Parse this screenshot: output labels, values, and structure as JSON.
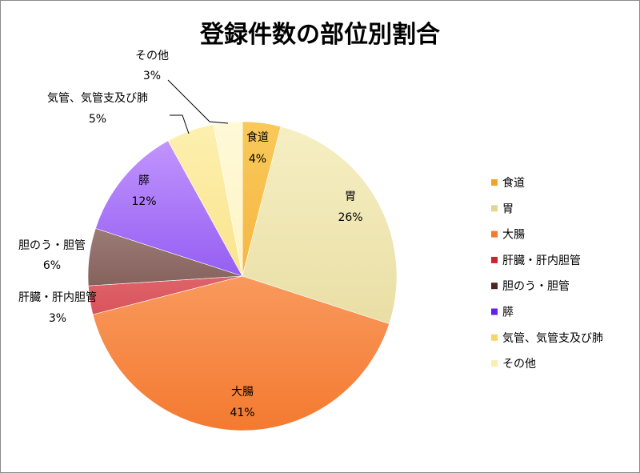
{
  "chart_data": {
    "type": "pie",
    "title": "登録件数の部位別割合",
    "legend_position": "right",
    "categories": [
      "食道",
      "胃",
      "大腸",
      "肝臓・肝内胆管",
      "胆のう・胆管",
      "膵",
      "気管、気管支及び肺",
      "その他"
    ],
    "values": [
      4,
      26,
      41,
      3,
      6,
      12,
      5,
      3
    ],
    "value_labels": [
      "4%",
      "26%",
      "41%",
      "3%",
      "6%",
      "12%",
      "5%",
      "3%"
    ],
    "colors": [
      [
        "#f9c95a",
        "#f2a42a"
      ],
      [
        "#f6efc4",
        "#e2d694"
      ],
      [
        "#fcb88a",
        "#f47a30"
      ],
      [
        "#f6a0a5",
        "#c8262f"
      ],
      [
        "#c4a8a2",
        "#4f2420"
      ],
      [
        "#c79cff",
        "#6420e6"
      ],
      [
        "#fdf0b0",
        "#f6d668"
      ],
      [
        "#fff9d8",
        "#fbeeb0"
      ]
    ]
  }
}
